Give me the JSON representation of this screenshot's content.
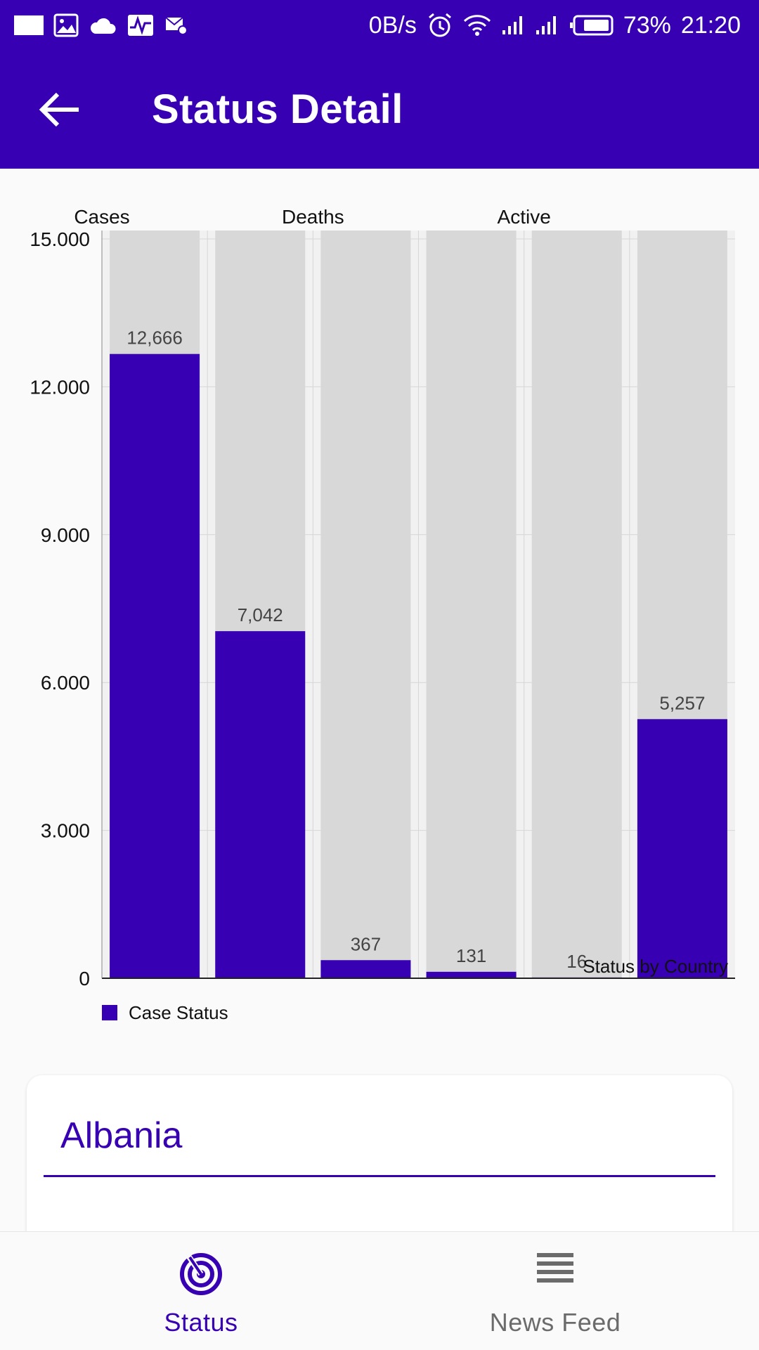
{
  "status_bar": {
    "net_speed": "0B/s",
    "battery": "73%",
    "time": "21:20",
    "icons": [
      "square-icon",
      "image-icon",
      "cloud-icon",
      "activity-icon",
      "mail-settings-icon",
      "alarm-icon",
      "wifi-icon",
      "signal-icon",
      "signal-icon",
      "battery-icon"
    ]
  },
  "app_bar": {
    "title": "Status Detail",
    "back_icon": "arrow-left-icon"
  },
  "colors": {
    "primary": "#3700b3",
    "bar_background": "#d8d8d8",
    "white": "#ffffff"
  },
  "chart_data": {
    "type": "bar",
    "top_labels": [
      "Cases",
      "Deaths",
      "Active"
    ],
    "categories": [
      "",
      "",
      "",
      "",
      "",
      ""
    ],
    "values": [
      12666,
      7042,
      367,
      131,
      16,
      5257
    ],
    "value_labels": [
      "12,666",
      "7,042",
      "367",
      "131",
      "16",
      "5,257"
    ],
    "y_ticks": [
      "0",
      "3.000",
      "6.000",
      "9.000",
      "12.000",
      "15.000"
    ],
    "ylim": [
      0,
      15000
    ],
    "description": "Status by Country",
    "legend": {
      "label": "Case Status",
      "placement": "bottom-left"
    },
    "grid": true
  },
  "card": {
    "country": "Albania"
  },
  "bottom_nav": {
    "items": [
      {
        "label": "Status",
        "icon": "radar-icon",
        "active": true
      },
      {
        "label": "News Feed",
        "icon": "list-icon",
        "active": false
      }
    ]
  }
}
